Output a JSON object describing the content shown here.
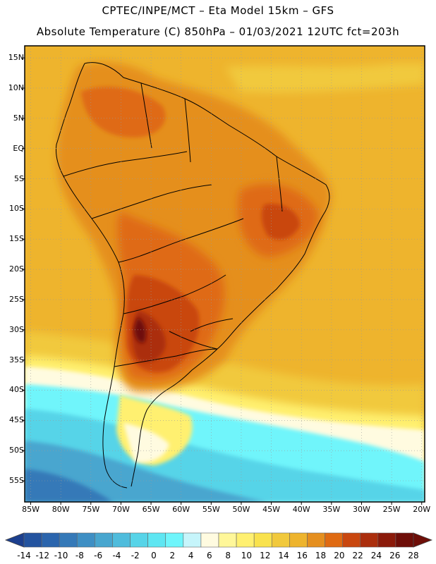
{
  "title": {
    "line1": "CPTEC/INPE/MCT –  Eta Model 15km – GFS",
    "line2": "Absolute Temperature (C) 850hPa – 01/03/2021 12UTC fct=203h"
  },
  "map_data": {
    "variable": "Absolute Temperature",
    "units": "C",
    "level": "850hPa",
    "extent": {
      "lon_min": -86,
      "lon_max": -19.5,
      "lat_min": -58.5,
      "lat_max": 17
    },
    "lat_ticks": [
      {
        "value": 15,
        "label": "15N"
      },
      {
        "value": 10,
        "label": "10N"
      },
      {
        "value": 5,
        "label": "5N"
      },
      {
        "value": 0,
        "label": "EQ"
      },
      {
        "value": -5,
        "label": "5S"
      },
      {
        "value": -10,
        "label": "10S"
      },
      {
        "value": -15,
        "label": "15S"
      },
      {
        "value": -20,
        "label": "20S"
      },
      {
        "value": -25,
        "label": "25S"
      },
      {
        "value": -30,
        "label": "30S"
      },
      {
        "value": -35,
        "label": "35S"
      },
      {
        "value": -40,
        "label": "40S"
      },
      {
        "value": -45,
        "label": "45S"
      },
      {
        "value": -50,
        "label": "50S"
      },
      {
        "value": -55,
        "label": "55S"
      }
    ],
    "lon_ticks": [
      {
        "value": -85,
        "label": "85W"
      },
      {
        "value": -80,
        "label": "80W"
      },
      {
        "value": -75,
        "label": "75W"
      },
      {
        "value": -70,
        "label": "70W"
      },
      {
        "value": -65,
        "label": "65W"
      },
      {
        "value": -60,
        "label": "60W"
      },
      {
        "value": -55,
        "label": "55W"
      },
      {
        "value": -50,
        "label": "50W"
      },
      {
        "value": -45,
        "label": "45W"
      },
      {
        "value": -40,
        "label": "40W"
      },
      {
        "value": -35,
        "label": "35W"
      },
      {
        "value": -30,
        "label": "30W"
      },
      {
        "value": -25,
        "label": "25W"
      },
      {
        "value": -20,
        "label": "20W"
      }
    ]
  },
  "colorbar": {
    "labels": [
      "-14",
      "-12",
      "-10",
      "-8",
      "-6",
      "-4",
      "-2",
      "0",
      "2",
      "4",
      "6",
      "8",
      "10",
      "12",
      "14",
      "16",
      "18",
      "20",
      "22",
      "24",
      "26",
      "28"
    ],
    "colors": [
      "#1c3f8e",
      "#23539f",
      "#2b65ad",
      "#3579b8",
      "#3e8fc4",
      "#48a6cf",
      "#4fbcdc",
      "#57d4e8",
      "#5ee6f2",
      "#6ff5fb",
      "#c6f5fb",
      "#fffbe0",
      "#fff799",
      "#fff070",
      "#f9e24d",
      "#f1c93c",
      "#eeb42d",
      "#e58f1f",
      "#df6a12",
      "#c9470f",
      "#ab2e0d",
      "#8b1a0a",
      "#6e0e08",
      "#6e0e08"
    ]
  }
}
